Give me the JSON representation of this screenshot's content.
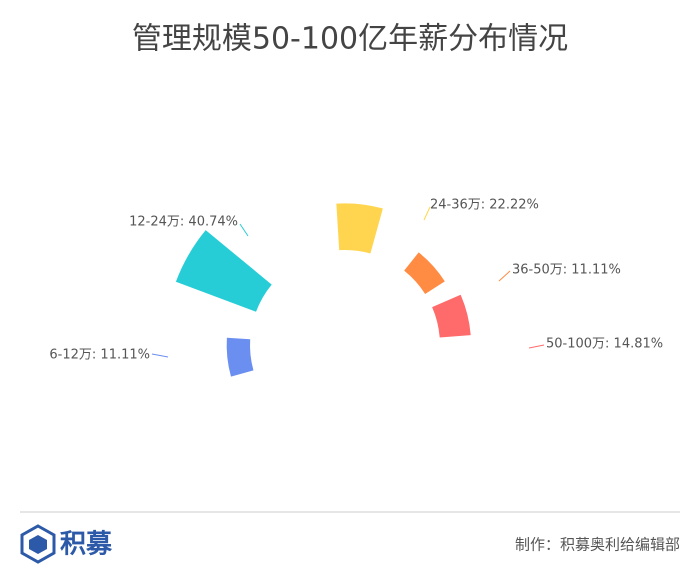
{
  "chart_data": {
    "type": "rose",
    "title": "管理规模50-100亿年薪分布情况",
    "values": [
      11.11,
      40.74,
      22.22,
      11.11,
      14.81
    ],
    "value_labels": [
      "6-12万: 11.11%",
      "12-24万: 40.74%",
      "24-36万: 22.22%",
      "36-50万: 11.11%",
      "50-100万: 14.81%"
    ],
    "colors": [
      "#6b8ff0",
      "#27cdd6",
      "#ffd54f",
      "#ff8c42",
      "#ff6b6b"
    ]
  },
  "footer": {
    "logo": "积募",
    "credit": "制作：积募奥利给编辑部"
  }
}
